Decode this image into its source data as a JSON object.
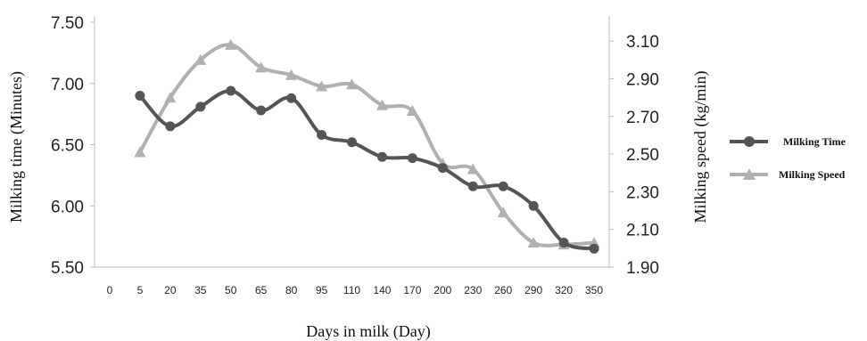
{
  "chart_data": {
    "type": "line",
    "xlabel": "Days in milk (Day)",
    "ylabel_left": "Milking time (Minutes)",
    "ylabel_right": "Milking speed (kg/min)",
    "x_ticks": [
      "0",
      "5",
      "20",
      "35",
      "50",
      "65",
      "80",
      "95",
      "110",
      "140",
      "170",
      "200",
      "230",
      "260",
      "290",
      "320",
      "350"
    ],
    "categories": [
      "5",
      "20",
      "35",
      "50",
      "65",
      "80",
      "95",
      "110",
      "140",
      "170",
      "200",
      "230",
      "260",
      "290",
      "320",
      "350"
    ],
    "ylim_left": [
      5.5,
      7.5
    ],
    "yticks_left": [
      "5.50",
      "6.00",
      "6.50",
      "7.00",
      "7.50"
    ],
    "ylim_right": [
      1.9,
      3.2
    ],
    "yticks_right": [
      "1.90",
      "2.10",
      "2.30",
      "2.50",
      "2.70",
      "2.90",
      "3.10"
    ],
    "grid": false,
    "legend_position": "right",
    "series": [
      {
        "name": "Milking Time",
        "axis": "left",
        "marker": "circle",
        "color": "#555555",
        "values": [
          6.9,
          6.65,
          6.81,
          6.94,
          6.78,
          6.88,
          6.58,
          6.52,
          6.4,
          6.39,
          6.31,
          6.16,
          6.16,
          6.0,
          5.7,
          5.65
        ]
      },
      {
        "name": "Milking Speed",
        "axis": "right",
        "marker": "triangle",
        "color": "#b0b0b0",
        "values": [
          2.51,
          2.8,
          3.0,
          3.08,
          2.96,
          2.92,
          2.86,
          2.87,
          2.76,
          2.73,
          2.45,
          2.42,
          2.19,
          2.03,
          2.02,
          2.03
        ]
      }
    ]
  }
}
